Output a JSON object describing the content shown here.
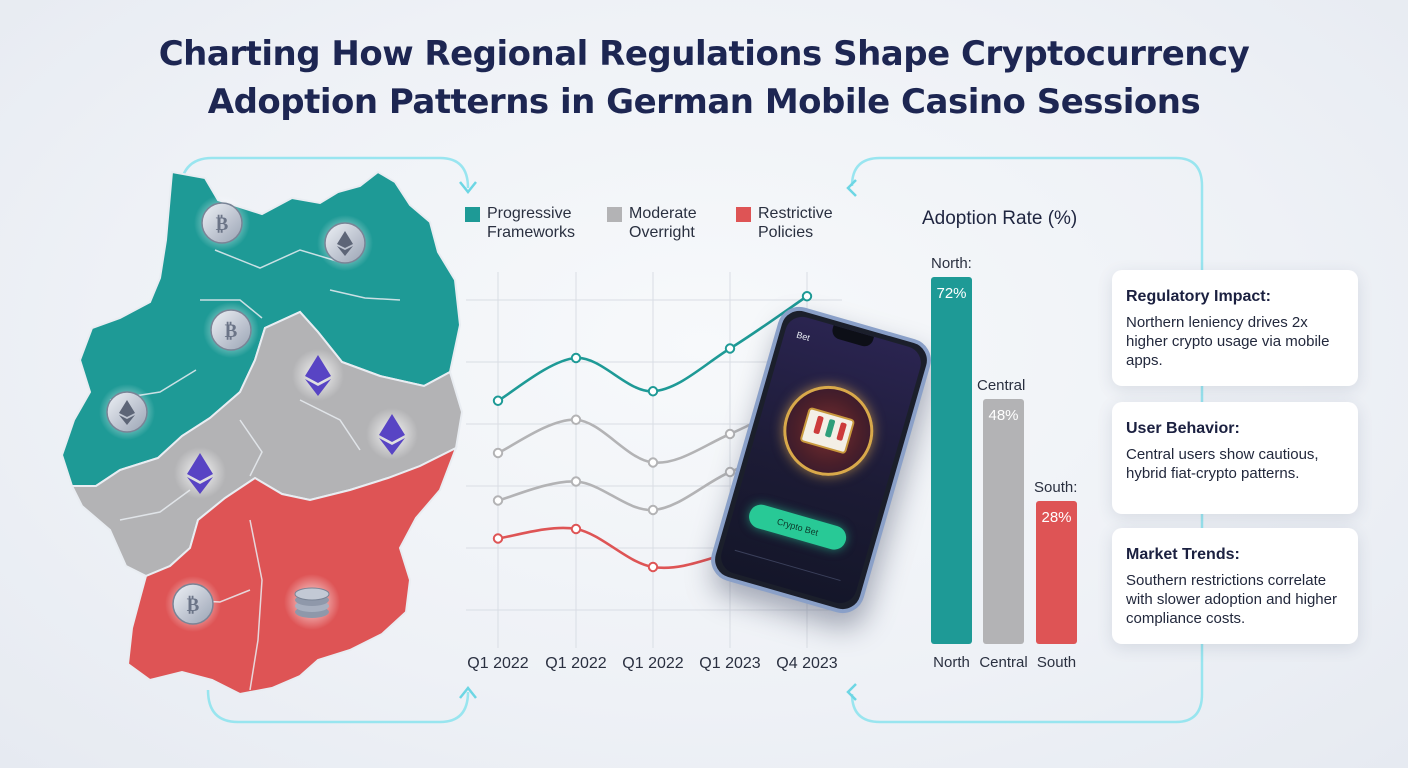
{
  "title_line1": "Charting How Regional Regulations Shape Cryptocurrency",
  "title_line2": "Adoption Patterns in German Mobile Casino Sessions",
  "colors": {
    "progressive": "#1e9a96",
    "moderate": "#b3b3b5",
    "restrictive": "#de5455",
    "title": "#1d2652",
    "connector": "#8fe3ee"
  },
  "map": {
    "regions": [
      {
        "name": "North",
        "policy": "Progressive Frameworks"
      },
      {
        "name": "Central",
        "policy": "Moderate Overright"
      },
      {
        "name": "South",
        "policy": "Restrictive Policies"
      }
    ],
    "coin_icons": [
      "bitcoin-coin",
      "ethereum-coin",
      "bitcoin-coin",
      "ethereum-coin",
      "ethereum-coin",
      "ethereum-coin",
      "ethereum-coin",
      "bitcoin-coin",
      "coin-stack"
    ]
  },
  "legend": [
    {
      "line1": "Progressive",
      "line2": "Frameworks",
      "color": "#1e9a96"
    },
    {
      "line1": "Moderate",
      "line2": "Overright",
      "color": "#b3b3b5"
    },
    {
      "line1": "Restrictive",
      "line2": "Policies",
      "color": "#de5455"
    }
  ],
  "phone": {
    "screen_top": "Bet",
    "button_label": "Crypto Bet",
    "icon": "slot-machine-icon"
  },
  "chart_data": [
    {
      "type": "line",
      "categories": [
        "Q1 2022",
        "Q1 2022",
        "Q1 2022",
        "Q1 2023",
        "Q4 2023"
      ],
      "grid": true,
      "y_axis_labels": "none",
      "series": [
        {
          "name": "Progressive Frameworks",
          "color": "#1e9a96",
          "values": [
            63,
            72,
            65,
            74,
            85
          ]
        },
        {
          "name": "Moderate Overright",
          "color": "#b3b3b5",
          "values": [
            52,
            59,
            50,
            56,
            64
          ]
        },
        {
          "name": "Moderate Overright",
          "color": "#b3b3b5",
          "values": [
            42,
            46,
            40,
            48,
            54
          ]
        },
        {
          "name": "Restrictive Policies",
          "color": "#de5455",
          "values": [
            34,
            36,
            28,
            31,
            37
          ]
        }
      ]
    },
    {
      "type": "bar",
      "title": "Adoption Rate (%)",
      "categories": [
        "North",
        "Central",
        "South"
      ],
      "top_labels": [
        "North:",
        "Central",
        "South:"
      ],
      "values": [
        72,
        48,
        28
      ],
      "value_labels": [
        "72%",
        "48%",
        "28%"
      ],
      "colors": [
        "#1e9a96",
        "#b3b3b5",
        "#de5455"
      ]
    }
  ],
  "cards": [
    {
      "title": "Regulatory Impact:",
      "text": "Northern leniency drives 2x higher crypto usage via mobile apps."
    },
    {
      "title": "User Behavior:",
      "text": "Central users show cautious, hybrid fiat-crypto patterns."
    },
    {
      "title": "Market Trends:",
      "text": "Southern restrictions correlate with slower adoption and higher compliance costs."
    }
  ]
}
